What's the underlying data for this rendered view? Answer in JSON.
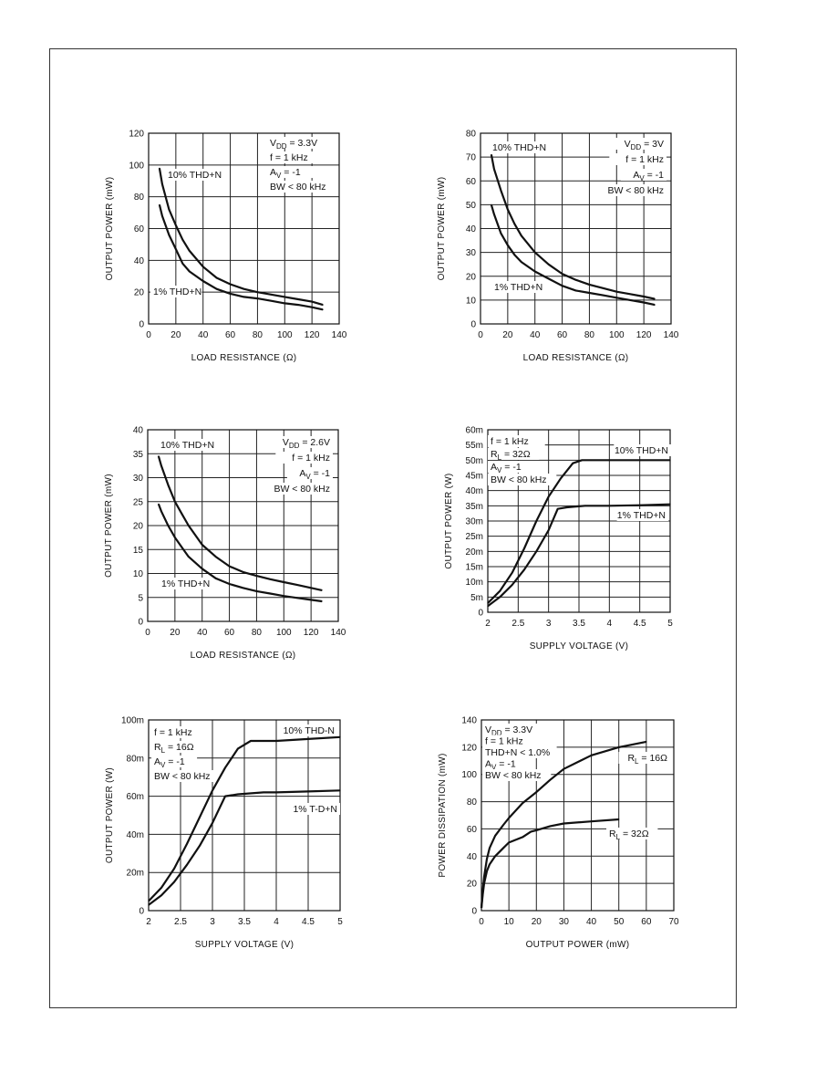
{
  "chart_data": [
    {
      "type": "line",
      "xlabel": "LOAD RESISTANCE (Ω)",
      "ylabel": "OUTPUT POWER (mW)",
      "xlim": [
        0,
        140
      ],
      "ylim": [
        0,
        120
      ],
      "xticks": [
        0,
        20,
        40,
        60,
        80,
        100,
        120,
        140
      ],
      "yticks": [
        0,
        20,
        40,
        60,
        80,
        100,
        120
      ],
      "xtick_labels": [
        "0",
        "20",
        "40",
        "60",
        "80",
        "100",
        "120",
        "140"
      ],
      "ytick_labels": [
        "0",
        "20",
        "40",
        "60",
        "80",
        "100",
        "120"
      ],
      "grid": true,
      "notes": [
        "VDD = 3.3V",
        "f = 1 kHz",
        "AV = -1",
        "BW < 80 kHz"
      ],
      "series": [
        {
          "name": "10% THD+N",
          "x": [
            8,
            10,
            15,
            20,
            25,
            30,
            40,
            50,
            60,
            70,
            80,
            90,
            100,
            110,
            120,
            128
          ],
          "y": [
            98,
            88,
            72,
            62,
            53,
            46,
            36,
            29,
            25,
            22,
            20,
            18.5,
            17,
            15.5,
            14,
            12
          ]
        },
        {
          "name": "1% THD+N",
          "x": [
            8,
            10,
            15,
            20,
            25,
            30,
            40,
            50,
            60,
            70,
            80,
            90,
            100,
            110,
            120,
            128
          ],
          "y": [
            75,
            68,
            56,
            47,
            38,
            33,
            27,
            22,
            19,
            17,
            16,
            14.5,
            13,
            12,
            10.5,
            9
          ]
        }
      ]
    },
    {
      "type": "line",
      "xlabel": "LOAD RESISTANCE (Ω)",
      "ylabel": "OUTPUT POWER (mW)",
      "xlim": [
        0,
        140
      ],
      "ylim": [
        0,
        80
      ],
      "xticks": [
        0,
        20,
        40,
        60,
        80,
        100,
        120,
        140
      ],
      "yticks": [
        0,
        10,
        20,
        30,
        40,
        50,
        60,
        70,
        80
      ],
      "xtick_labels": [
        "0",
        "20",
        "40",
        "60",
        "80",
        "100",
        "120",
        "140"
      ],
      "ytick_labels": [
        "0",
        "10",
        "20",
        "30",
        "40",
        "50",
        "60",
        "70",
        "80"
      ],
      "grid": true,
      "notes": [
        "VDD = 3V",
        "f = 1 kHz",
        "AV = -1",
        "BW < 80 kHz"
      ],
      "series": [
        {
          "name": "10% THD+N",
          "x": [
            8,
            10,
            15,
            20,
            25,
            30,
            40,
            50,
            60,
            70,
            80,
            90,
            100,
            110,
            120,
            128
          ],
          "y": [
            71,
            65,
            56,
            48,
            42,
            37,
            30,
            25,
            21,
            18.5,
            16.5,
            15,
            13.5,
            12.5,
            11.5,
            10.5
          ]
        },
        {
          "name": "1% THD+N",
          "x": [
            8,
            10,
            15,
            20,
            25,
            30,
            40,
            50,
            60,
            70,
            80,
            90,
            100,
            110,
            120,
            128
          ],
          "y": [
            50,
            46,
            38,
            33,
            29,
            26,
            22,
            19,
            16,
            14,
            13,
            12,
            11,
            10,
            9,
            8
          ]
        }
      ]
    },
    {
      "type": "line",
      "xlabel": "LOAD RESISTANCE (Ω)",
      "ylabel": "OUTPUT POWER (mW)",
      "xlim": [
        0,
        140
      ],
      "ylim": [
        0,
        40
      ],
      "xticks": [
        0,
        20,
        40,
        60,
        80,
        100,
        120,
        140
      ],
      "yticks": [
        0,
        5,
        10,
        15,
        20,
        25,
        30,
        35,
        40
      ],
      "xtick_labels": [
        "0",
        "20",
        "40",
        "60",
        "80",
        "100",
        "120",
        "140"
      ],
      "ytick_labels": [
        "0",
        "5",
        "10",
        "15",
        "20",
        "25",
        "30",
        "35",
        "40"
      ],
      "grid": true,
      "notes": [
        "VDD = 2.6V",
        "f = 1 kHz",
        "AV = -1",
        "BW < 80 kHz"
      ],
      "series": [
        {
          "name": "10% THD+N",
          "x": [
            8,
            10,
            15,
            20,
            25,
            30,
            40,
            50,
            60,
            70,
            80,
            90,
            100,
            110,
            120,
            128
          ],
          "y": [
            34.5,
            32.5,
            28.5,
            25,
            22.5,
            20,
            16,
            13.5,
            11.5,
            10.3,
            9.5,
            8.8,
            8.2,
            7.6,
            7,
            6.5
          ]
        },
        {
          "name": "1% THD+N",
          "x": [
            8,
            10,
            15,
            20,
            25,
            30,
            40,
            50,
            60,
            70,
            80,
            90,
            100,
            110,
            120,
            128
          ],
          "y": [
            24.5,
            23,
            20,
            17.5,
            15.5,
            13.5,
            11,
            9,
            7.8,
            7,
            6.3,
            5.8,
            5.3,
            4.9,
            4.5,
            4.2
          ]
        }
      ]
    },
    {
      "type": "line",
      "xlabel": "SUPPLY VOLTAGE (V)",
      "ylabel": "OUTPUT POWER (W)",
      "xlim": [
        2,
        5
      ],
      "ylim": [
        0,
        0.06
      ],
      "xticks": [
        2,
        2.5,
        3,
        3.5,
        4,
        4.5,
        5
      ],
      "yticks": [
        0,
        0.005,
        0.01,
        0.015,
        0.02,
        0.025,
        0.03,
        0.035,
        0.04,
        0.045,
        0.05,
        0.055,
        0.06
      ],
      "xtick_labels": [
        "2",
        "2.5",
        "3",
        "3.5",
        "4",
        "4.5",
        "5"
      ],
      "ytick_labels": [
        "0",
        "5m",
        "10m",
        "15m",
        "20m",
        "25m",
        "30m",
        "35m",
        "40m",
        "45m",
        "50m",
        "55m",
        "60m"
      ],
      "grid": true,
      "notes": [
        "f = 1 kHz",
        "RL = 32Ω",
        "AV = -1",
        "BW < 80 kHz"
      ],
      "series": [
        {
          "name": "10% THD+N",
          "x": [
            2,
            2.2,
            2.4,
            2.6,
            2.8,
            3.0,
            3.2,
            3.4,
            3.55,
            3.7,
            4.0,
            4.5,
            5.0
          ],
          "y": [
            0.003,
            0.007,
            0.013,
            0.021,
            0.03,
            0.038,
            0.044,
            0.049,
            0.05,
            0.05,
            0.05,
            0.05,
            0.05
          ]
        },
        {
          "name": "1% THD+N",
          "x": [
            2,
            2.2,
            2.4,
            2.6,
            2.8,
            3.0,
            3.15,
            3.3,
            3.6,
            4.0,
            4.5,
            5.0
          ],
          "y": [
            0.002,
            0.005,
            0.009,
            0.014,
            0.02,
            0.027,
            0.034,
            0.0345,
            0.035,
            0.035,
            0.0352,
            0.0355
          ]
        }
      ]
    },
    {
      "type": "line",
      "xlabel": "SUPPLY VOLTAGE (V)",
      "ylabel": "OUTPUT POWER (W)",
      "xlim": [
        2,
        5
      ],
      "ylim": [
        0,
        0.1
      ],
      "xticks": [
        2,
        2.5,
        3,
        3.5,
        4,
        4.5,
        5
      ],
      "yticks": [
        0,
        0.02,
        0.04,
        0.06,
        0.08,
        0.1
      ],
      "xtick_labels": [
        "2",
        "2.5",
        "3",
        "3.5",
        "4",
        "4.5",
        "5"
      ],
      "ytick_labels": [
        "0",
        "20m",
        "40m",
        "60m",
        "80m",
        "100m"
      ],
      "grid": true,
      "notes": [
        "f = 1 kHz",
        "RL = 16Ω",
        "AV = -1",
        "BW < 80 kHz"
      ],
      "series": [
        {
          "name": "10% THD-N",
          "x": [
            2,
            2.2,
            2.4,
            2.6,
            2.8,
            3.0,
            3.2,
            3.4,
            3.6,
            3.8,
            4.0,
            4.5,
            5.0
          ],
          "y": [
            0.005,
            0.012,
            0.022,
            0.035,
            0.049,
            0.063,
            0.075,
            0.085,
            0.089,
            0.089,
            0.089,
            0.09,
            0.091
          ]
        },
        {
          "name": "1% T-D+N",
          "x": [
            2,
            2.2,
            2.4,
            2.6,
            2.8,
            3.0,
            3.2,
            3.4,
            3.8,
            4.0,
            4.5,
            5.0
          ],
          "y": [
            0.003,
            0.008,
            0.015,
            0.024,
            0.034,
            0.046,
            0.06,
            0.061,
            0.062,
            0.062,
            0.0625,
            0.063
          ]
        }
      ]
    },
    {
      "type": "line",
      "xlabel": "OUTPUT POWER (mW)",
      "ylabel": "POWER DISSIPATION (mW)",
      "xlim": [
        0,
        70
      ],
      "ylim": [
        0,
        140
      ],
      "xticks": [
        0,
        10,
        20,
        30,
        40,
        50,
        60,
        70
      ],
      "yticks": [
        0,
        20,
        40,
        60,
        80,
        100,
        120,
        140
      ],
      "xtick_labels": [
        "0",
        "10",
        "20",
        "30",
        "40",
        "50",
        "60",
        "70"
      ],
      "ytick_labels": [
        "0",
        "20",
        "40",
        "60",
        "80",
        "100",
        "120",
        "140"
      ],
      "grid": true,
      "notes": [
        "VDD = 3.3V",
        "f = 1 kHz",
        "THD+N < 1.0%",
        "AV = -1",
        "BW < 80 kHz"
      ],
      "series": [
        {
          "name": "RL = 16Ω",
          "x": [
            0,
            0.5,
            1,
            2,
            3,
            5,
            8,
            10,
            15,
            20,
            25,
            30,
            40,
            50,
            60
          ],
          "y": [
            2,
            15,
            25,
            38,
            46,
            55,
            63,
            68,
            79,
            87,
            96,
            104,
            114,
            120,
            124
          ]
        },
        {
          "name": "RL = 32Ω",
          "x": [
            0,
            0.5,
            1,
            2,
            3,
            5,
            8,
            10,
            15,
            18,
            20,
            25,
            30,
            40,
            50
          ],
          "y": [
            2,
            12,
            20,
            29,
            34,
            40,
            46,
            50,
            54,
            58,
            59,
            62,
            64,
            65.5,
            67
          ]
        }
      ]
    }
  ]
}
